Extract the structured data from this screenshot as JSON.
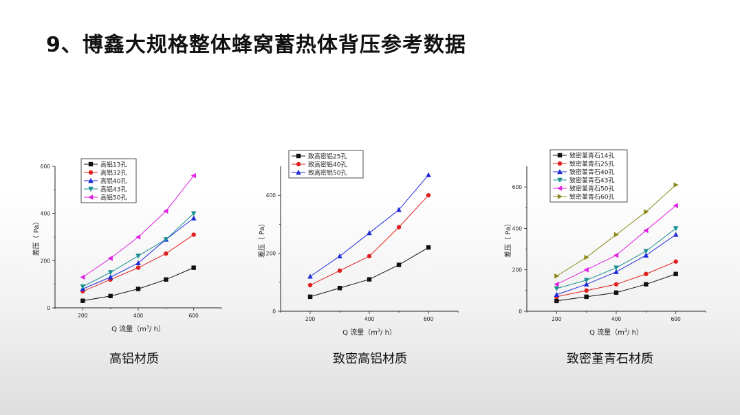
{
  "title": "9、博鑫大规格整体蜂窝蓄热体背压参考数据",
  "captions": [
    "高铝材质",
    "致密高铝材质",
    "致密堇青石材质"
  ],
  "chart_data": [
    {
      "type": "line",
      "xlabel_prefix": "Q 流量（m",
      "xlabel_sup": "3",
      "xlabel_suffix": "/ h）",
      "ylabel": "差压（ Pa）",
      "x": [
        200,
        300,
        400,
        500,
        600
      ],
      "xticks": [
        200,
        400,
        600
      ],
      "yticks": [
        0,
        200,
        400,
        600
      ],
      "xlim": [
        100,
        700
      ],
      "ylim": [
        0,
        600
      ],
      "grid": false,
      "legend_position": "top-left",
      "series": [
        {
          "name": "高铝13孔",
          "color": "#111111",
          "marker": "square",
          "values": [
            30,
            50,
            80,
            120,
            170
          ]
        },
        {
          "name": "高铝32孔",
          "color": "#e02020",
          "marker": "circle",
          "values": [
            70,
            120,
            170,
            230,
            310
          ]
        },
        {
          "name": "高铝40孔",
          "color": "#1e2ad8",
          "marker": "triangle-up",
          "values": [
            80,
            130,
            190,
            290,
            380
          ]
        },
        {
          "name": "高铝43孔",
          "color": "#1a9090",
          "marker": "triangle-down",
          "values": [
            90,
            150,
            220,
            290,
            400
          ]
        },
        {
          "name": "高铝50孔",
          "color": "#e020e0",
          "marker": "triangle-left",
          "values": [
            130,
            210,
            300,
            410,
            560
          ]
        }
      ]
    },
    {
      "type": "line",
      "xlabel_prefix": "Q 流量（m",
      "xlabel_sup": "3",
      "xlabel_suffix": "/ h）",
      "ylabel": "差压（ Pa）",
      "x": [
        200,
        300,
        400,
        500,
        600
      ],
      "xticks": [
        200,
        400,
        600
      ],
      "yticks": [
        0,
        200,
        400
      ],
      "xlim": [
        100,
        700
      ],
      "ylim": [
        0,
        500
      ],
      "grid": false,
      "legend_position": "top-left",
      "series": [
        {
          "name": "致高密铝25孔",
          "color": "#111111",
          "marker": "square",
          "values": [
            50,
            80,
            110,
            160,
            220
          ]
        },
        {
          "name": "致高密铝40孔",
          "color": "#e02020",
          "marker": "circle",
          "values": [
            90,
            140,
            190,
            290,
            400
          ]
        },
        {
          "name": "致高密铝50孔",
          "color": "#1e2ad8",
          "marker": "triangle-up",
          "values": [
            120,
            190,
            270,
            350,
            470
          ]
        }
      ]
    },
    {
      "type": "line",
      "xlabel_prefix": "Q 流量（m",
      "xlabel_sup": "3",
      "xlabel_suffix": "/ h）",
      "ylabel": "差压（ Pa）",
      "x": [
        200,
        300,
        400,
        500,
        600
      ],
      "xticks": [
        200,
        400,
        600
      ],
      "yticks": [
        0,
        200,
        400,
        600
      ],
      "xlim": [
        100,
        700
      ],
      "ylim": [
        0,
        700
      ],
      "grid": false,
      "legend_position": "top-left",
      "series": [
        {
          "name": "致密堇青石14孔",
          "color": "#111111",
          "marker": "square",
          "values": [
            50,
            70,
            90,
            130,
            180
          ]
        },
        {
          "name": "致密堇青石25孔",
          "color": "#e02020",
          "marker": "circle",
          "values": [
            70,
            100,
            130,
            180,
            240
          ]
        },
        {
          "name": "致密堇青石40孔",
          "color": "#1e2ad8",
          "marker": "triangle-up",
          "values": [
            80,
            130,
            190,
            270,
            370
          ]
        },
        {
          "name": "致密堇青石43孔",
          "color": "#1a9090",
          "marker": "triangle-down",
          "values": [
            110,
            150,
            210,
            290,
            400
          ]
        },
        {
          "name": "致密堇青石50孔",
          "color": "#e020e0",
          "marker": "triangle-left",
          "values": [
            130,
            200,
            270,
            390,
            510
          ]
        },
        {
          "name": "致密堇青石60孔",
          "color": "#8a8a1a",
          "marker": "triangle-right",
          "values": [
            170,
            260,
            370,
            480,
            610
          ]
        }
      ]
    }
  ]
}
